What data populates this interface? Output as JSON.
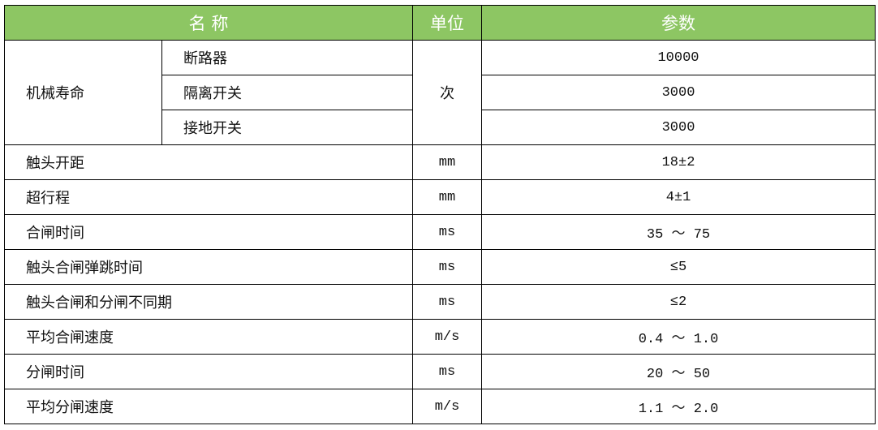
{
  "header": {
    "name": "名 称",
    "unit": "单位",
    "param": "参数"
  },
  "life": {
    "label": "机械寿命",
    "unit": "次",
    "items": [
      {
        "name": "断路器",
        "value": "10000"
      },
      {
        "name": "隔离开关",
        "value": "3000"
      },
      {
        "name": "接地开关",
        "value": "3000"
      }
    ]
  },
  "rows": [
    {
      "name": "触头开距",
      "unit": "mm",
      "value": "18±2"
    },
    {
      "name": "超行程",
      "unit": "mm",
      "value": "4±1"
    },
    {
      "name": "合闸时间",
      "unit": "ms",
      "value": "35 ～ 75"
    },
    {
      "name": "触头合闸弹跳时间",
      "unit": "ms",
      "value": "≤5"
    },
    {
      "name": "触头合闸和分闸不同期",
      "unit": "ms",
      "value": "≤2"
    },
    {
      "name": "平均合闸速度",
      "unit": "m/s",
      "value": "0.4 ～ 1.0"
    },
    {
      "name": "分闸时间",
      "unit": "ms",
      "value": "20 ～ 50"
    },
    {
      "name": "平均分闸速度",
      "unit": "m/s",
      "value": "1.1 ～ 2.0"
    }
  ]
}
